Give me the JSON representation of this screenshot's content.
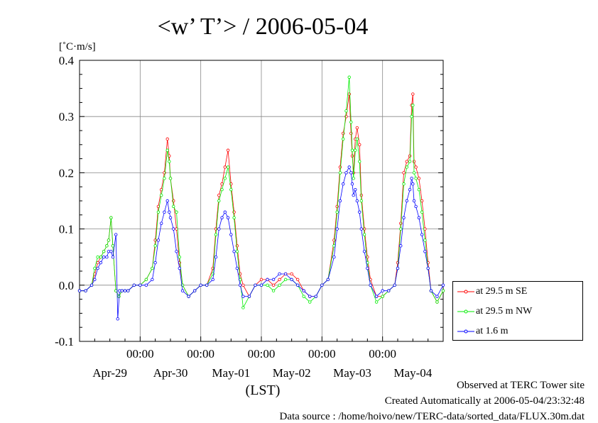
{
  "chart_data": {
    "type": "line",
    "title": "<w’ T’> / 2006-05-04",
    "unit_label": "[˚C·m/s]",
    "xlabel": "(LST)",
    "ylim": [
      -0.1,
      0.4
    ],
    "y_ticks": [
      "-0.1",
      "0.0",
      "0.1",
      "0.2",
      "0.3",
      "0.4"
    ],
    "x_range_days": [
      0,
      6
    ],
    "x_time_labels": [
      "00:00",
      "00:00",
      "00:00",
      "00:00",
      "00:00"
    ],
    "x_date_labels": [
      "Apr-29",
      "Apr-30",
      "May-01",
      "May-02",
      "May-03",
      "May-04"
    ],
    "grid": true,
    "legend_position": "right",
    "series": [
      {
        "name": "at 29.5 m SE",
        "color": "#ff0000",
        "x": [
          0.0,
          0.1,
          0.2,
          0.25,
          0.3,
          0.35,
          0.4,
          0.45,
          0.48,
          0.52,
          0.55,
          0.6,
          0.65,
          0.7,
          0.75,
          0.8,
          0.9,
          1.0,
          1.1,
          1.2,
          1.25,
          1.3,
          1.35,
          1.4,
          1.45,
          1.48,
          1.5,
          1.55,
          1.6,
          1.65,
          1.7,
          1.8,
          1.9,
          2.0,
          2.1,
          2.2,
          2.25,
          2.3,
          2.35,
          2.4,
          2.45,
          2.5,
          2.55,
          2.6,
          2.65,
          2.7,
          2.8,
          2.9,
          3.0,
          3.1,
          3.2,
          3.3,
          3.4,
          3.5,
          3.6,
          3.7,
          3.8,
          3.9,
          4.0,
          4.1,
          4.2,
          4.25,
          4.3,
          4.35,
          4.4,
          4.45,
          4.48,
          4.5,
          4.52,
          4.55,
          4.58,
          4.62,
          4.65,
          4.7,
          4.75,
          4.8,
          4.9,
          5.0,
          5.1,
          5.2,
          5.25,
          5.3,
          5.35,
          5.4,
          5.45,
          5.48,
          5.5,
          5.52,
          5.55,
          5.6,
          5.65,
          5.7,
          5.75,
          5.8,
          5.9,
          6.0
        ],
        "values": [
          -0.01,
          -0.01,
          0.0,
          0.02,
          0.04,
          0.05,
          0.06,
          0.07,
          0.08,
          0.12,
          0.07,
          -0.01,
          -0.02,
          -0.01,
          -0.01,
          -0.01,
          0.0,
          0.0,
          0.01,
          0.03,
          0.08,
          0.14,
          0.17,
          0.2,
          0.26,
          0.23,
          0.19,
          0.15,
          0.1,
          0.04,
          0.0,
          -0.02,
          -0.01,
          0.0,
          0.0,
          0.03,
          0.1,
          0.16,
          0.18,
          0.21,
          0.24,
          0.18,
          0.13,
          0.07,
          0.02,
          0.0,
          -0.02,
          0.0,
          0.01,
          0.01,
          0.0,
          0.01,
          0.02,
          0.02,
          0.01,
          -0.01,
          -0.02,
          -0.02,
          0.0,
          0.01,
          0.08,
          0.14,
          0.21,
          0.27,
          0.3,
          0.34,
          0.27,
          0.23,
          0.2,
          0.26,
          0.28,
          0.25,
          0.16,
          0.1,
          0.05,
          0.01,
          -0.02,
          -0.02,
          -0.01,
          0.0,
          0.04,
          0.11,
          0.2,
          0.22,
          0.23,
          0.32,
          0.34,
          0.22,
          0.21,
          0.19,
          0.15,
          0.1,
          0.04,
          -0.01,
          -0.03,
          -0.01
        ]
      },
      {
        "name": "at 29.5 m NW",
        "color": "#00ee00",
        "x": [
          0.0,
          0.1,
          0.2,
          0.25,
          0.3,
          0.35,
          0.4,
          0.45,
          0.48,
          0.52,
          0.55,
          0.6,
          0.65,
          0.7,
          0.75,
          0.8,
          0.9,
          1.0,
          1.1,
          1.2,
          1.25,
          1.3,
          1.35,
          1.4,
          1.45,
          1.48,
          1.5,
          1.55,
          1.6,
          1.65,
          1.7,
          1.8,
          1.9,
          2.0,
          2.1,
          2.2,
          2.25,
          2.3,
          2.35,
          2.4,
          2.45,
          2.5,
          2.55,
          2.6,
          2.65,
          2.7,
          2.8,
          2.9,
          3.0,
          3.1,
          3.2,
          3.3,
          3.4,
          3.5,
          3.6,
          3.7,
          3.8,
          3.9,
          4.0,
          4.1,
          4.2,
          4.25,
          4.3,
          4.35,
          4.4,
          4.45,
          4.48,
          4.5,
          4.52,
          4.55,
          4.58,
          4.62,
          4.65,
          4.7,
          4.75,
          4.8,
          4.9,
          5.0,
          5.1,
          5.2,
          5.25,
          5.3,
          5.35,
          5.4,
          5.45,
          5.48,
          5.5,
          5.52,
          5.55,
          5.6,
          5.65,
          5.7,
          5.75,
          5.8,
          5.9,
          6.0
        ],
        "values": [
          -0.01,
          -0.01,
          0.0,
          0.03,
          0.05,
          0.05,
          0.06,
          0.07,
          0.08,
          0.12,
          0.07,
          -0.01,
          -0.02,
          -0.01,
          -0.01,
          -0.01,
          0.0,
          0.0,
          0.01,
          0.03,
          0.07,
          0.13,
          0.16,
          0.19,
          0.24,
          0.22,
          0.19,
          0.14,
          0.13,
          0.05,
          0.0,
          -0.02,
          -0.01,
          0.0,
          0.0,
          0.02,
          0.09,
          0.15,
          0.17,
          0.19,
          0.21,
          0.17,
          0.12,
          0.06,
          0.01,
          -0.04,
          -0.02,
          0.0,
          0.0,
          0.0,
          -0.01,
          0.0,
          0.01,
          0.01,
          0.0,
          -0.02,
          -0.03,
          -0.02,
          0.0,
          0.01,
          0.07,
          0.13,
          0.2,
          0.26,
          0.31,
          0.37,
          0.29,
          0.24,
          0.19,
          0.24,
          0.26,
          0.22,
          0.15,
          0.09,
          0.04,
          0.0,
          -0.03,
          -0.02,
          -0.01,
          0.0,
          0.03,
          0.1,
          0.18,
          0.21,
          0.22,
          0.3,
          0.32,
          0.2,
          0.19,
          0.17,
          0.13,
          0.08,
          0.03,
          -0.01,
          -0.03,
          -0.01
        ]
      },
      {
        "name": "at 1.6 m",
        "color": "#0000ff",
        "x": [
          0.0,
          0.1,
          0.2,
          0.25,
          0.3,
          0.35,
          0.4,
          0.45,
          0.48,
          0.52,
          0.55,
          0.6,
          0.63,
          0.66,
          0.7,
          0.75,
          0.8,
          0.9,
          1.0,
          1.1,
          1.2,
          1.25,
          1.3,
          1.35,
          1.4,
          1.45,
          1.48,
          1.5,
          1.55,
          1.6,
          1.65,
          1.7,
          1.8,
          1.9,
          2.0,
          2.1,
          2.2,
          2.25,
          2.3,
          2.35,
          2.4,
          2.45,
          2.5,
          2.55,
          2.6,
          2.65,
          2.7,
          2.8,
          2.9,
          3.0,
          3.1,
          3.2,
          3.3,
          3.4,
          3.5,
          3.6,
          3.7,
          3.8,
          3.9,
          4.0,
          4.1,
          4.2,
          4.25,
          4.3,
          4.35,
          4.4,
          4.45,
          4.48,
          4.5,
          4.52,
          4.55,
          4.58,
          4.62,
          4.65,
          4.7,
          4.75,
          4.8,
          4.9,
          5.0,
          5.1,
          5.2,
          5.25,
          5.3,
          5.35,
          5.4,
          5.45,
          5.48,
          5.5,
          5.52,
          5.55,
          5.6,
          5.65,
          5.7,
          5.75,
          5.8,
          5.9,
          6.0
        ],
        "values": [
          -0.01,
          -0.01,
          0.0,
          0.01,
          0.03,
          0.04,
          0.05,
          0.05,
          0.06,
          0.06,
          0.05,
          0.09,
          -0.06,
          -0.01,
          -0.01,
          -0.01,
          -0.01,
          0.0,
          0.0,
          0.0,
          0.01,
          0.04,
          0.08,
          0.11,
          0.13,
          0.15,
          0.13,
          0.12,
          0.1,
          0.06,
          0.03,
          -0.01,
          -0.02,
          -0.01,
          0.0,
          0.0,
          0.01,
          0.05,
          0.1,
          0.12,
          0.13,
          0.12,
          0.09,
          0.06,
          0.03,
          0.0,
          -0.02,
          -0.02,
          0.0,
          0.0,
          0.01,
          0.01,
          0.02,
          0.02,
          0.01,
          0.0,
          -0.01,
          -0.02,
          -0.02,
          0.0,
          0.01,
          0.05,
          0.1,
          0.15,
          0.18,
          0.2,
          0.21,
          0.2,
          0.18,
          0.16,
          0.17,
          0.15,
          0.13,
          0.1,
          0.06,
          0.03,
          0.0,
          -0.02,
          -0.01,
          -0.01,
          0.0,
          0.03,
          0.07,
          0.12,
          0.15,
          0.17,
          0.19,
          0.18,
          0.15,
          0.14,
          0.12,
          0.09,
          0.06,
          0.03,
          -0.01,
          -0.02,
          0.0
        ]
      }
    ]
  },
  "footer": {
    "line1": "Observed at TERC Tower site",
    "line2": "Created Automatically at 2006-05-04/23:32:48",
    "line3": "Data source : /home/hoivo/new/TERC-data/sorted_data/FLUX.30m.dat"
  }
}
